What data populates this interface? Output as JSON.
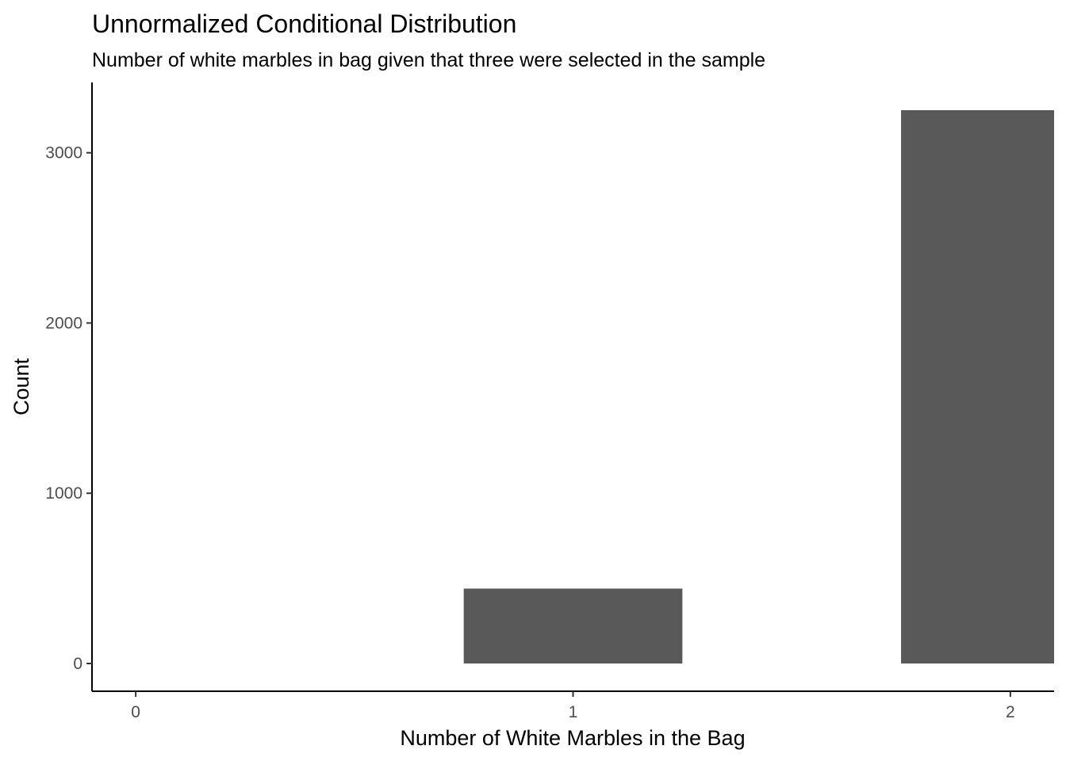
{
  "chart_data": {
    "type": "bar",
    "title": "Unnormalized Conditional Distribution",
    "subtitle": "Number of white marbles in bag given that three were selected in the sample",
    "xlabel": "Number of White Marbles in the Bag",
    "ylabel": "Count",
    "categories": [
      "0",
      "1",
      "2"
    ],
    "x": [
      0,
      1,
      2
    ],
    "values": [
      0,
      440,
      3250
    ],
    "bar_color": "#595959",
    "x_ticks": [
      "0",
      "1",
      "2"
    ],
    "y_ticks": [
      0,
      1000,
      2000,
      3000
    ],
    "y_tick_labels": [
      "0",
      "1000",
      "2000",
      "3000"
    ],
    "xlim": [
      -0.1,
      2.1
    ],
    "ylim": [
      -163,
      3413
    ],
    "grid": false,
    "legend": "none"
  }
}
